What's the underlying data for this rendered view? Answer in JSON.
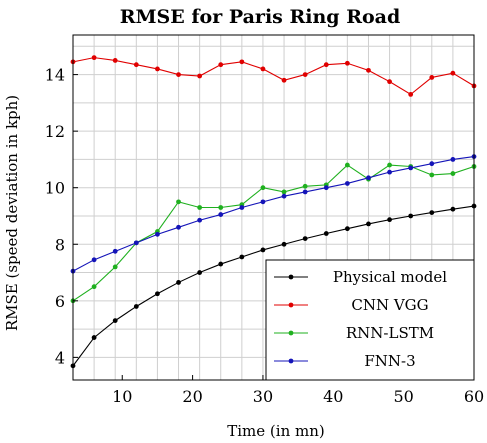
{
  "chart_data": {
    "type": "line",
    "title": "RMSE for Paris Ring Road",
    "xlabel": "Time (in mn)",
    "ylabel": "RMSE (speed deviation in kph)",
    "xlim": [
      3,
      60
    ],
    "ylim": [
      3.2,
      15.4
    ],
    "xticks": [
      10,
      20,
      30,
      40,
      50,
      60
    ],
    "yticks": [
      4,
      6,
      8,
      10,
      12,
      14
    ],
    "grid": true,
    "legend_position": "bottom-right",
    "x": [
      3,
      6,
      9,
      12,
      15,
      18,
      21,
      24,
      27,
      30,
      33,
      36,
      39,
      42,
      45,
      48,
      51,
      54,
      57,
      60
    ],
    "series": [
      {
        "name": "Physical model",
        "color": "#000000",
        "values": [
          3.7,
          4.7,
          5.3,
          5.8,
          6.25,
          6.65,
          7.0,
          7.3,
          7.55,
          7.8,
          8.0,
          8.2,
          8.38,
          8.55,
          8.72,
          8.87,
          9.0,
          9.12,
          9.24,
          9.35
        ]
      },
      {
        "name": "CNN VGG",
        "color": "#e00000",
        "values": [
          14.45,
          14.6,
          14.5,
          14.35,
          14.2,
          14.0,
          13.95,
          14.35,
          14.45,
          14.2,
          13.8,
          14.0,
          14.35,
          14.4,
          14.15,
          13.75,
          13.3,
          13.9,
          14.05,
          13.6
        ]
      },
      {
        "name": "RNN-LSTM",
        "color": "#1fb01f",
        "values": [
          6.0,
          6.5,
          7.2,
          8.05,
          8.45,
          9.5,
          9.3,
          9.3,
          9.4,
          10.0,
          9.85,
          10.05,
          10.1,
          10.8,
          10.3,
          10.8,
          10.75,
          10.45,
          10.5,
          10.75
        ]
      },
      {
        "name": "FNN-3",
        "color": "#1414b8",
        "values": [
          7.05,
          7.45,
          7.75,
          8.05,
          8.35,
          8.6,
          8.85,
          9.05,
          9.3,
          9.5,
          9.7,
          9.85,
          10.0,
          10.15,
          10.35,
          10.55,
          10.7,
          10.85,
          11.0,
          11.1
        ]
      }
    ]
  }
}
